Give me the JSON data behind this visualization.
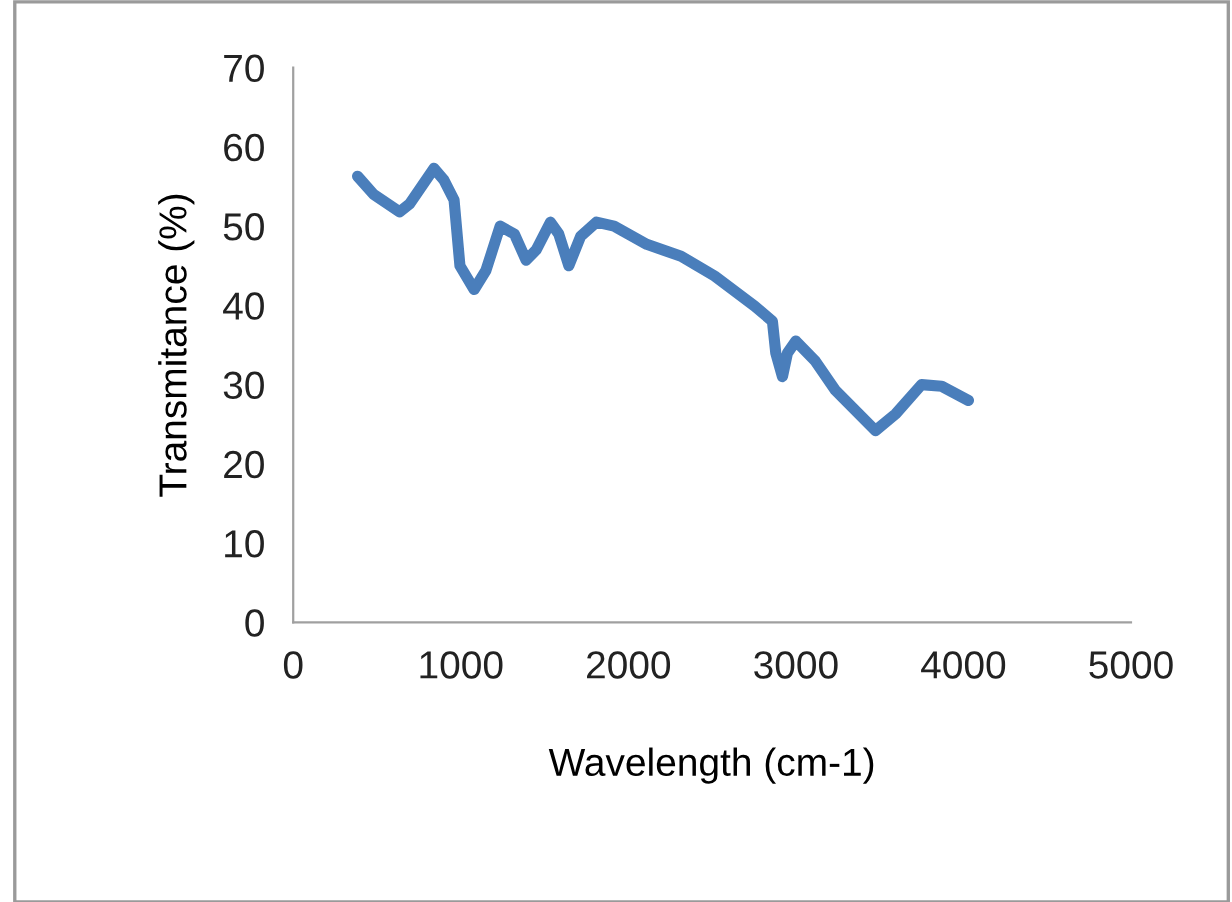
{
  "chart_data": {
    "type": "line",
    "xlabel": "Wavelength (cm-1)",
    "ylabel": "Transmitance (%)",
    "xlim": [
      0,
      5000
    ],
    "xticks": [
      0,
      1000,
      2000,
      3000,
      4000,
      5000
    ],
    "ylim": [
      0,
      70
    ],
    "yticks": [
      0,
      10,
      20,
      30,
      40,
      50,
      60,
      70
    ],
    "grid": false,
    "legend": false,
    "series": [
      {
        "color": "#4a7ebb",
        "x": [
          384,
          480,
          635,
          695,
          840,
          900,
          960,
          995,
          1080,
          1150,
          1235,
          1320,
          1390,
          1450,
          1535,
          1585,
          1645,
          1715,
          1810,
          1915,
          2110,
          2315,
          2515,
          2755,
          2860,
          2880,
          2920,
          2950,
          3000,
          3115,
          3235,
          3475,
          3595,
          3750,
          3870,
          4030
        ],
        "values": [
          56.3,
          54,
          51.8,
          52.8,
          57.3,
          55.8,
          53.3,
          45,
          42,
          44.4,
          50,
          49,
          45.7,
          47,
          50.5,
          49,
          45,
          48.7,
          50.5,
          50,
          47.7,
          46.2,
          43.7,
          39.9,
          38,
          34,
          31,
          34,
          35.5,
          33,
          29.3,
          24.2,
          26.3,
          30,
          29.8,
          28
        ]
      }
    ]
  }
}
